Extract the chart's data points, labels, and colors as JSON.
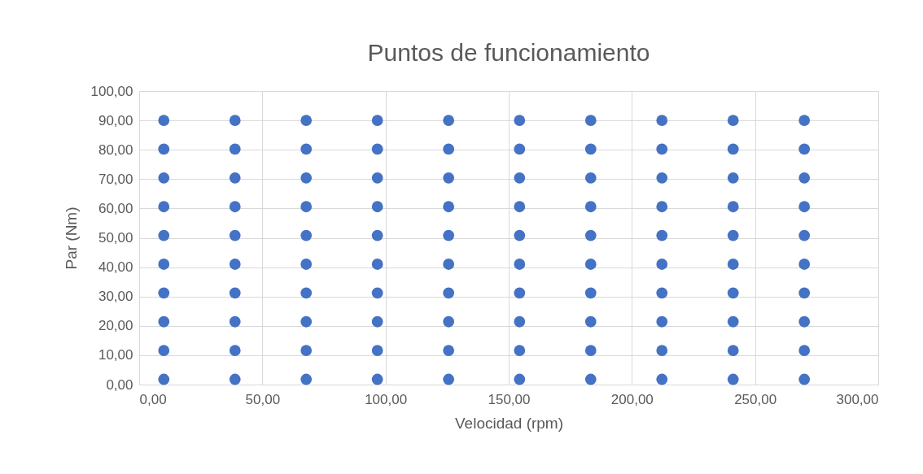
{
  "chart_data": {
    "type": "scatter",
    "title": "Puntos de funcionamiento",
    "xlabel": "Velocidad (rpm)",
    "ylabel": "Par (Nm)",
    "series": [
      {
        "color": "#4472c4",
        "x": [
          10,
          10,
          10,
          10,
          10,
          10,
          10,
          10,
          10,
          10,
          38.9,
          38.9,
          38.9,
          38.9,
          38.9,
          38.9,
          38.9,
          38.9,
          38.9,
          38.9,
          67.8,
          67.8,
          67.8,
          67.8,
          67.8,
          67.8,
          67.8,
          67.8,
          67.8,
          67.8,
          96.7,
          96.7,
          96.7,
          96.7,
          96.7,
          96.7,
          96.7,
          96.7,
          96.7,
          96.7,
          125.6,
          125.6,
          125.6,
          125.6,
          125.6,
          125.6,
          125.6,
          125.6,
          125.6,
          125.6,
          154.4,
          154.4,
          154.4,
          154.4,
          154.4,
          154.4,
          154.4,
          154.4,
          154.4,
          154.4,
          183.3,
          183.3,
          183.3,
          183.3,
          183.3,
          183.3,
          183.3,
          183.3,
          183.3,
          183.3,
          212.2,
          212.2,
          212.2,
          212.2,
          212.2,
          212.2,
          212.2,
          212.2,
          212.2,
          212.2,
          241.1,
          241.1,
          241.1,
          241.1,
          241.1,
          241.1,
          241.1,
          241.1,
          241.1,
          241.1,
          270,
          270,
          270,
          270,
          270,
          270,
          270,
          270,
          270,
          270
        ],
        "values": [
          1.8,
          11.6,
          21.4,
          31.2,
          41.0,
          50.8,
          60.6,
          70.4,
          80.2,
          90.0,
          1.8,
          11.6,
          21.4,
          31.2,
          41.0,
          50.8,
          60.6,
          70.4,
          80.2,
          90.0,
          1.8,
          11.6,
          21.4,
          31.2,
          41.0,
          50.8,
          60.6,
          70.4,
          80.2,
          90.0,
          1.8,
          11.6,
          21.4,
          31.2,
          41.0,
          50.8,
          60.6,
          70.4,
          80.2,
          90.0,
          1.8,
          11.6,
          21.4,
          31.2,
          41.0,
          50.8,
          60.6,
          70.4,
          80.2,
          90.0,
          1.8,
          11.6,
          21.4,
          31.2,
          41.0,
          50.8,
          60.6,
          70.4,
          80.2,
          90.0,
          1.8,
          11.6,
          21.4,
          31.2,
          41.0,
          50.8,
          60.6,
          70.4,
          80.2,
          90.0,
          1.8,
          11.6,
          21.4,
          31.2,
          41.0,
          50.8,
          60.6,
          70.4,
          80.2,
          90.0,
          1.8,
          11.6,
          21.4,
          31.2,
          41.0,
          50.8,
          60.6,
          70.4,
          80.2,
          90.0,
          1.8,
          11.6,
          21.4,
          31.2,
          41.0,
          50.8,
          60.6,
          70.4,
          80.2,
          90.0
        ]
      }
    ],
    "xlim": [
      0,
      300
    ],
    "xticks": [
      {
        "value": 0,
        "label": "0,00"
      },
      {
        "value": 50,
        "label": "50,00"
      },
      {
        "value": 100,
        "label": "100,00"
      },
      {
        "value": 150,
        "label": "150,00"
      },
      {
        "value": 200,
        "label": "200,00"
      },
      {
        "value": 250,
        "label": "250,00"
      },
      {
        "value": 300,
        "label": "300,00"
      }
    ],
    "ylim": [
      0,
      100
    ],
    "yticks": [
      {
        "value": 0,
        "label": "0,00"
      },
      {
        "value": 10,
        "label": "10,00"
      },
      {
        "value": 20,
        "label": "20,00"
      },
      {
        "value": 30,
        "label": "30,00"
      },
      {
        "value": 40,
        "label": "40,00"
      },
      {
        "value": 50,
        "label": "50,00"
      },
      {
        "value": 60,
        "label": "60,00"
      },
      {
        "value": 70,
        "label": "70,00"
      },
      {
        "value": 80,
        "label": "80,00"
      },
      {
        "value": 90,
        "label": "90,00"
      },
      {
        "value": 100,
        "label": "100,00"
      }
    ],
    "grid": true,
    "marker": "circle"
  }
}
